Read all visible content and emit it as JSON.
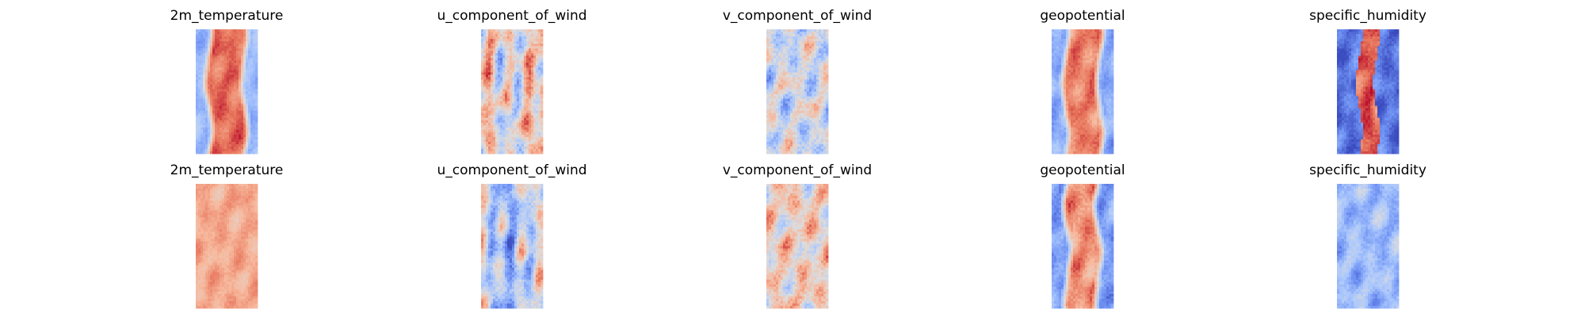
{
  "figure": {
    "background": "#ffffff",
    "colormap": "coolwarm",
    "colormap_stops": [
      "#3b4cc0",
      "#6f92f3",
      "#aac7fd",
      "#dddcdc",
      "#f7b89c",
      "#e7745b",
      "#b40426"
    ]
  },
  "chart_data": [
    {
      "type": "heatmap",
      "row": 0,
      "col": 0,
      "title": "2m_temperature",
      "pattern": "band",
      "level": 0.84,
      "width": 0.62,
      "noise": 0.12,
      "seed": 11,
      "grid_on": false
    },
    {
      "type": "heatmap",
      "row": 0,
      "col": 1,
      "title": "u_component_of_wind",
      "pattern": "streaks",
      "level": 0.55,
      "width": 0.5,
      "noise": 0.3,
      "seed": 23,
      "grid_on": false
    },
    {
      "type": "heatmap",
      "row": 0,
      "col": 2,
      "title": "v_component_of_wind",
      "pattern": "noise",
      "level": 0.45,
      "width": 0.5,
      "noise": 0.32,
      "seed": 37,
      "grid_on": false
    },
    {
      "type": "heatmap",
      "row": 0,
      "col": 3,
      "title": "geopotential",
      "pattern": "band",
      "level": 0.8,
      "width": 0.6,
      "noise": 0.14,
      "seed": 41,
      "grid_on": false
    },
    {
      "type": "heatmap",
      "row": 0,
      "col": 4,
      "title": "specific_humidity",
      "pattern": "ridge",
      "level": 0.92,
      "width": 0.28,
      "noise": 0.15,
      "seed": 53,
      "grid_on": false
    },
    {
      "type": "heatmap",
      "row": 1,
      "col": 0,
      "title": "2m_temperature",
      "pattern": "uniform",
      "level": 0.7,
      "width": 0.7,
      "noise": 0.12,
      "seed": 61,
      "grid_on": false
    },
    {
      "type": "heatmap",
      "row": 1,
      "col": 1,
      "title": "u_component_of_wind",
      "pattern": "streaks",
      "level": 0.38,
      "width": 0.45,
      "noise": 0.28,
      "seed": 73,
      "grid_on": false
    },
    {
      "type": "heatmap",
      "row": 1,
      "col": 2,
      "title": "v_component_of_wind",
      "pattern": "noise",
      "level": 0.58,
      "width": 0.5,
      "noise": 0.3,
      "seed": 89,
      "grid_on": false
    },
    {
      "type": "heatmap",
      "row": 1,
      "col": 3,
      "title": "geopotential",
      "pattern": "band",
      "level": 0.76,
      "width": 0.55,
      "noise": 0.17,
      "seed": 97,
      "grid_on": false
    },
    {
      "type": "heatmap",
      "row": 1,
      "col": 4,
      "title": "specific_humidity",
      "pattern": "uniform",
      "level": 0.3,
      "width": 0.5,
      "noise": 0.18,
      "seed": 101,
      "grid_on": false
    }
  ]
}
